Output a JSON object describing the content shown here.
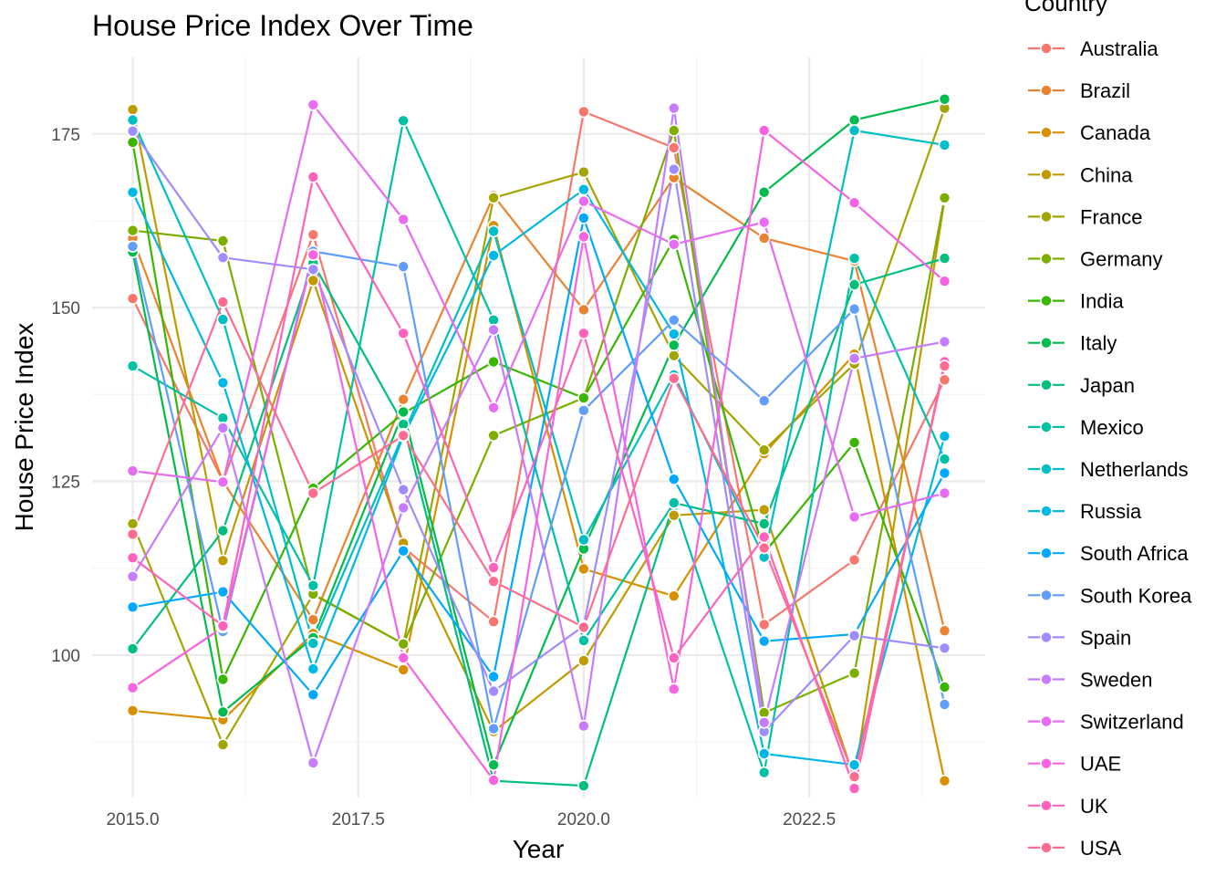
{
  "chart_data": {
    "type": "line",
    "title": "House Price Index Over Time",
    "xlabel": "Year",
    "ylabel": "House Price Index",
    "legend_title": "Country",
    "legend_position": "right",
    "grid": true,
    "xlim": [
      2014.55,
      2024.45
    ],
    "ylim": [
      79.5,
      186
    ],
    "x_ticks": [
      2015.0,
      2017.5,
      2020.0,
      2022.5
    ],
    "x_tick_labels": [
      "2015.0",
      "2017.5",
      "2020.0",
      "2022.5"
    ],
    "y_ticks": [
      100,
      125,
      150,
      175
    ],
    "y_tick_labels": [
      "100",
      "125",
      "150",
      "175"
    ],
    "x": [
      2015,
      2016,
      2017,
      2018,
      2019,
      2020,
      2021,
      2022,
      2023,
      2024
    ],
    "series": [
      {
        "name": "Australia",
        "color": "#F8766D",
        "values": [
          151.3,
          125.0,
          160.5,
          115.5,
          104.8,
          178.2,
          173.0,
          104.4,
          113.7,
          139.6
        ]
      },
      {
        "name": "Brazil",
        "color": "#EA8331",
        "values": [
          160.0,
          125.0,
          105.1,
          136.8,
          166.1,
          149.7,
          168.7,
          160.0,
          156.7,
          103.5
        ]
      },
      {
        "name": "Canada",
        "color": "#D89000",
        "values": [
          92.0,
          90.7,
          103.1,
          97.9,
          161.8,
          112.4,
          108.5,
          129.0,
          143.3,
          81.9
        ]
      },
      {
        "name": "China",
        "color": "#C09B00",
        "values": [
          178.5,
          113.6,
          153.9,
          116.1,
          89.0,
          99.2,
          120.1,
          120.9,
          82.2,
          165.6
        ]
      },
      {
        "name": "France",
        "color": "#A3A500",
        "values": [
          118.9,
          87.1,
          108.7,
          101.6,
          165.8,
          169.5,
          143.1,
          129.5,
          141.9,
          178.7
        ]
      },
      {
        "name": "Germany",
        "color": "#7CAE00",
        "values": [
          161.1,
          159.6,
          108.8,
          101.6,
          131.6,
          137.0,
          175.5,
          91.7,
          97.4,
          165.8
        ]
      },
      {
        "name": "India",
        "color": "#39B600",
        "values": [
          173.8,
          96.5,
          124.0,
          134.8,
          142.2,
          137.0,
          159.8,
          114.7,
          130.6,
          95.4
        ]
      },
      {
        "name": "Italy",
        "color": "#00BB4E",
        "values": [
          158.0,
          91.8,
          102.5,
          135.0,
          84.2,
          115.3,
          144.6,
          166.6,
          177.0,
          180.0
        ]
      },
      {
        "name": "Japan",
        "color": "#00BF7D",
        "values": [
          100.9,
          117.9,
          156.4,
          133.2,
          81.9,
          81.2,
          121.9,
          118.9,
          153.3,
          157.1
        ]
      },
      {
        "name": "Mexico",
        "color": "#00C1A3",
        "values": [
          141.6,
          134.1,
          110.0,
          176.9,
          148.2,
          102.1,
          121.9,
          83.1,
          157.1,
          128.2
        ]
      },
      {
        "name": "Netherlands",
        "color": "#00BFC4",
        "values": [
          177.0,
          148.3,
          101.7,
          131.8,
          161.0,
          116.6,
          140.3,
          114.1,
          175.5,
          173.4
        ]
      },
      {
        "name": "Russia",
        "color": "#00B8E5",
        "values": [
          166.6,
          139.2,
          98.0,
          131.5,
          157.5,
          167.0,
          146.2,
          85.8,
          84.2,
          131.5
        ]
      },
      {
        "name": "South Africa",
        "color": "#00A9FF",
        "values": [
          106.9,
          109.1,
          94.3,
          115.0,
          96.9,
          162.9,
          125.3,
          102.0,
          103.0,
          126.2
        ]
      },
      {
        "name": "South Korea",
        "color": "#619CFF",
        "values": [
          158.8,
          103.4,
          158.1,
          155.9,
          89.4,
          135.2,
          148.2,
          136.6,
          149.8,
          92.9
        ]
      },
      {
        "name": "Spain",
        "color": "#9F8CFF",
        "values": [
          175.4,
          157.2,
          155.5,
          123.8,
          94.8,
          104.2,
          169.9,
          89.0,
          102.8,
          101.0
        ]
      },
      {
        "name": "Sweden",
        "color": "#C77CFF",
        "values": [
          111.3,
          132.7,
          84.5,
          121.2,
          146.8,
          89.8,
          178.7,
          90.3,
          142.7,
          145.1
        ]
      },
      {
        "name": "Switzerland",
        "color": "#E76BF3",
        "values": [
          126.5,
          124.9,
          179.2,
          162.7,
          135.6,
          165.3,
          159.1,
          162.3,
          119.9,
          123.3
        ]
      },
      {
        "name": "UAE",
        "color": "#F763E0",
        "values": [
          95.3,
          104.0,
          157.6,
          99.6,
          82.0,
          160.2,
          95.1,
          175.5,
          165.1,
          153.8
        ]
      },
      {
        "name": "UK",
        "color": "#FF62BC",
        "values": [
          114.0,
          104.2,
          168.8,
          146.3,
          112.6,
          146.3,
          99.6,
          117.0,
          80.8,
          142.2
        ]
      },
      {
        "name": "USA",
        "color": "#FF6C91",
        "values": [
          117.4,
          150.8,
          123.3,
          131.6,
          110.6,
          104.0,
          139.8,
          115.4,
          82.5,
          141.6
        ]
      }
    ]
  }
}
